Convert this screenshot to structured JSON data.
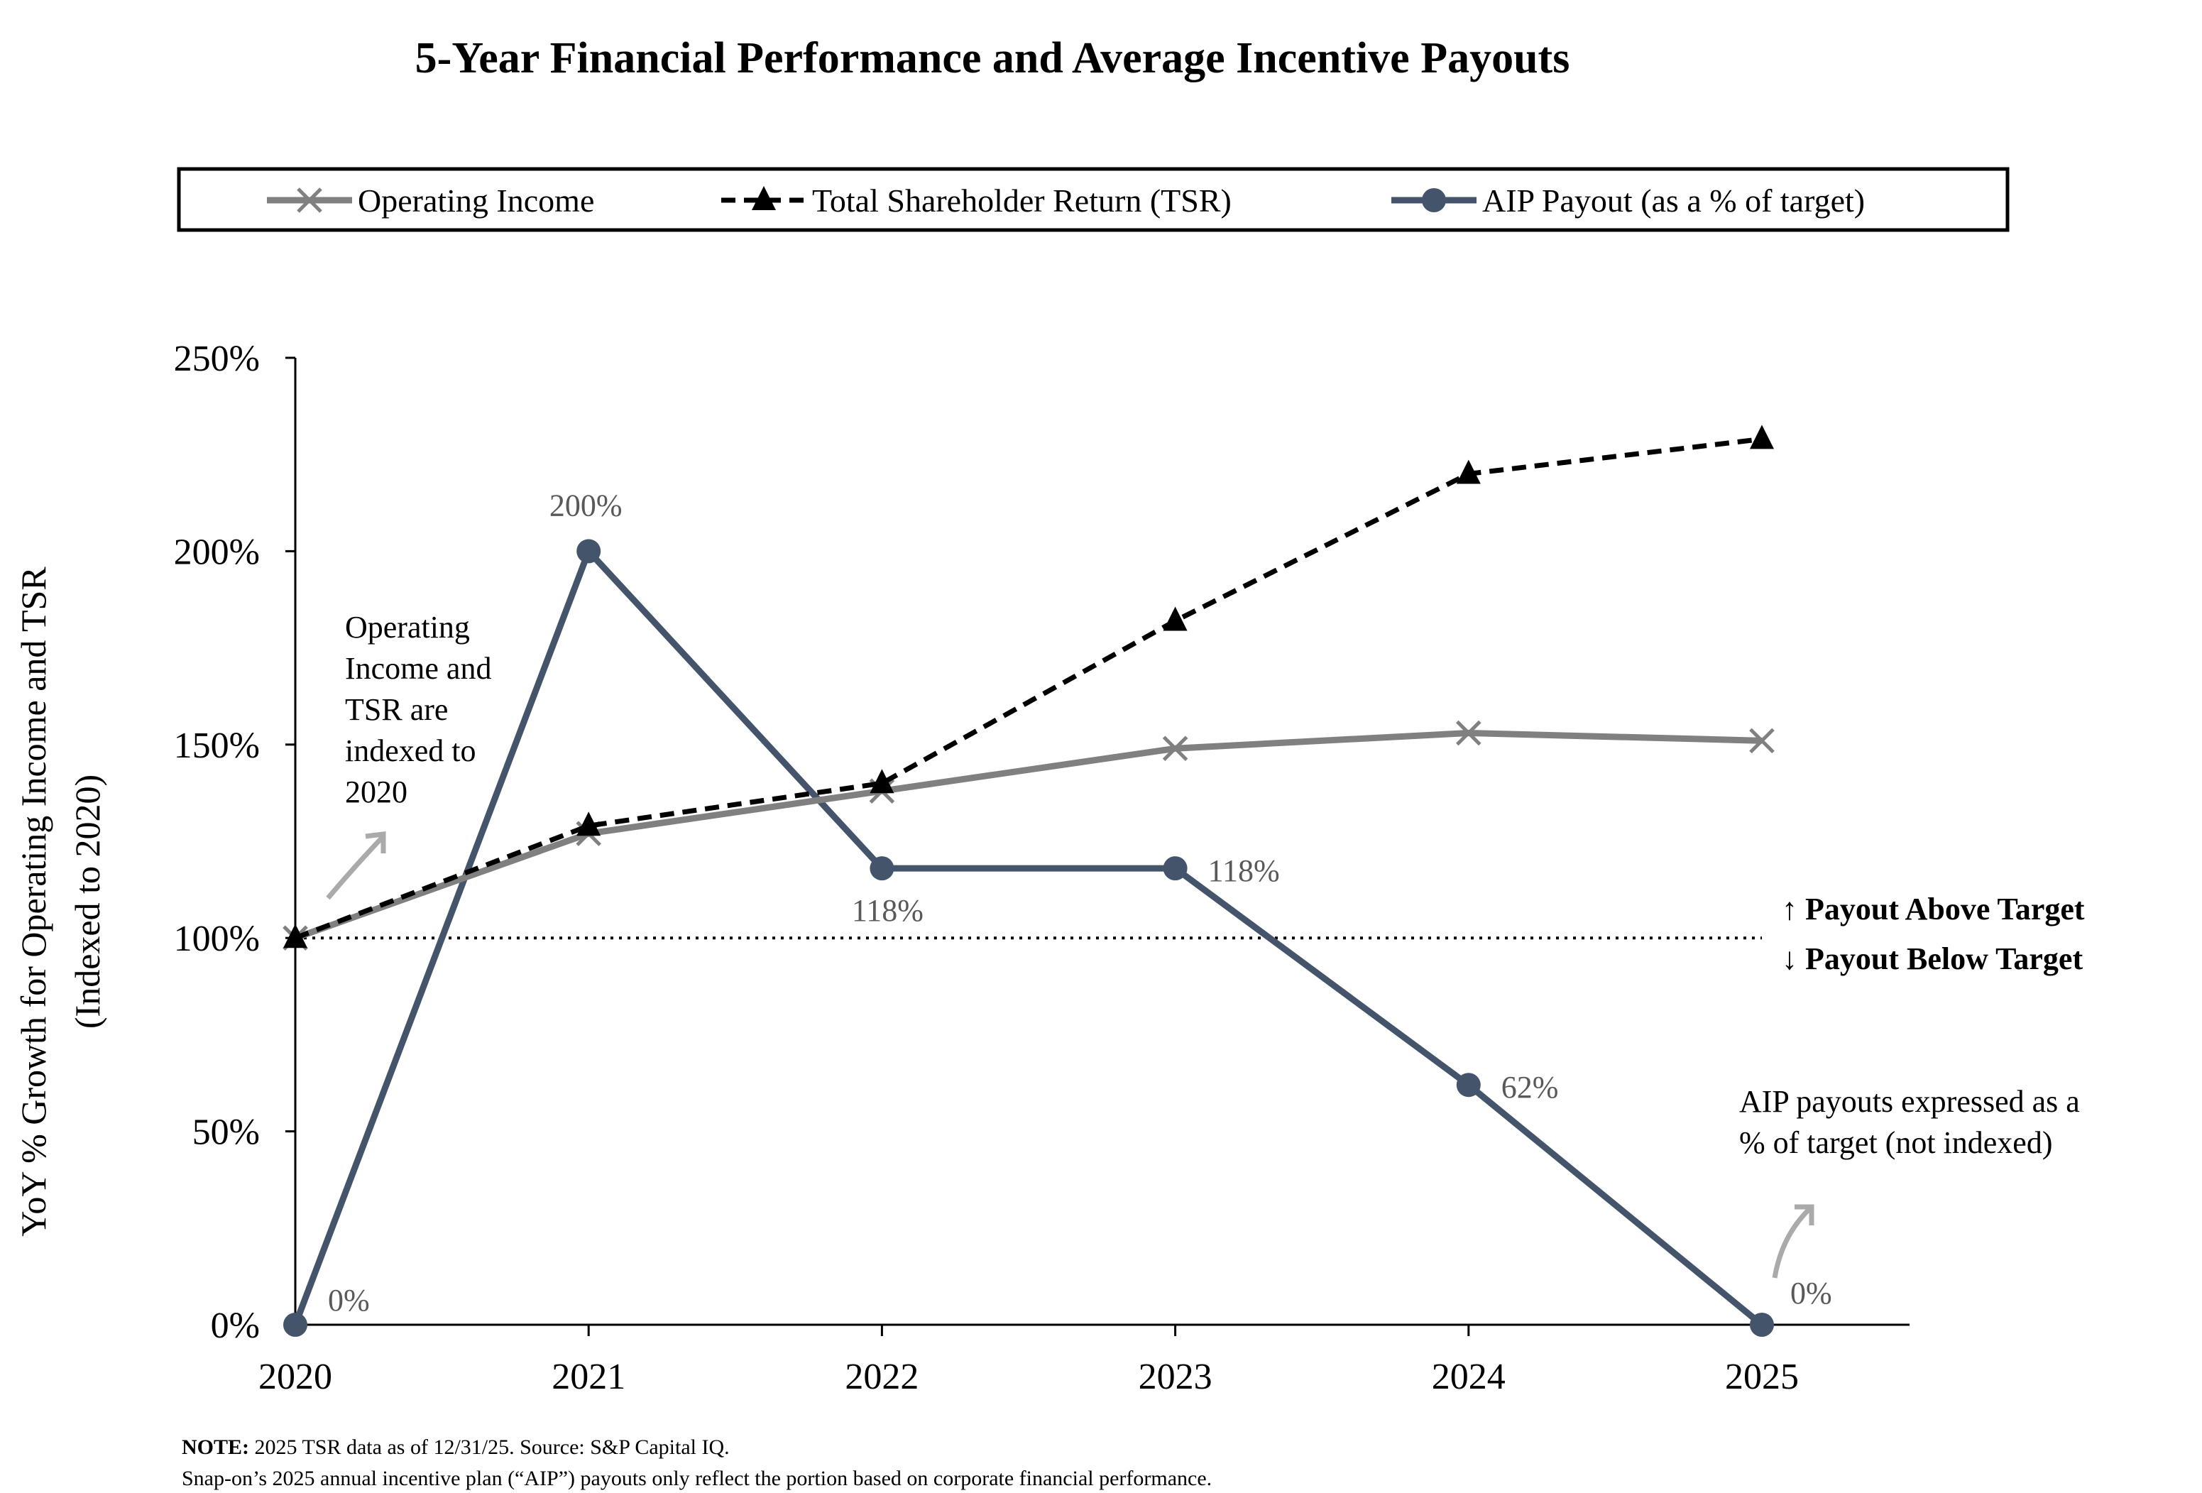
{
  "chart_data": {
    "type": "line",
    "title": "5-Year Financial Performance and Average Incentive Payouts",
    "ylabel": "YoY % Growth for Operating Income and TSR",
    "ylabel_sub": "(Indexed to 2020)",
    "x": [
      "2020",
      "2021",
      "2022",
      "2023",
      "2024",
      "2025"
    ],
    "ylim": [
      0,
      250
    ],
    "yticks": [
      0,
      50,
      100,
      150,
      200,
      250
    ],
    "ytick_labels": [
      "0%",
      "50%",
      "100%",
      "150%",
      "200%",
      "250%"
    ],
    "grid": false,
    "legend_placement": "top",
    "reference_line": {
      "value": 100,
      "style": "dotted",
      "above_label": "↑ Payout Above Target",
      "below_label": "↓ Payout Below Target"
    },
    "series": [
      {
        "name": "Operating Income",
        "values": [
          100,
          127,
          138,
          149,
          153,
          151
        ],
        "color": "#808080",
        "marker": "x",
        "style": "solid"
      },
      {
        "name": "Total Shareholder Return (TSR)",
        "values": [
          100,
          129,
          140,
          182,
          220,
          229
        ],
        "color": "#000000",
        "marker": "triangle",
        "style": "dashed"
      },
      {
        "name": "AIP Payout (as a % of target)",
        "values": [
          0,
          200,
          118,
          118,
          62,
          0
        ],
        "color": "#44546A",
        "marker": "circle",
        "style": "solid",
        "data_labels": [
          "0%",
          "200%",
          "118%",
          "118%",
          "62%",
          "0%"
        ]
      }
    ],
    "annotations": {
      "indexed_note": [
        "Operating",
        "Income and",
        "TSR are",
        "indexed to",
        "2020"
      ],
      "aip_note": [
        "AIP payouts expressed as a",
        "% of target (not indexed)"
      ]
    }
  },
  "footnote": {
    "bold": "NOTE:",
    "line1": " 2025 TSR data as of 12/31/25. Source: S&P Capital IQ.",
    "line2": "Snap-on’s 2025 annual incentive plan (“AIP”) payouts only reflect the portion based on corporate financial performance."
  }
}
